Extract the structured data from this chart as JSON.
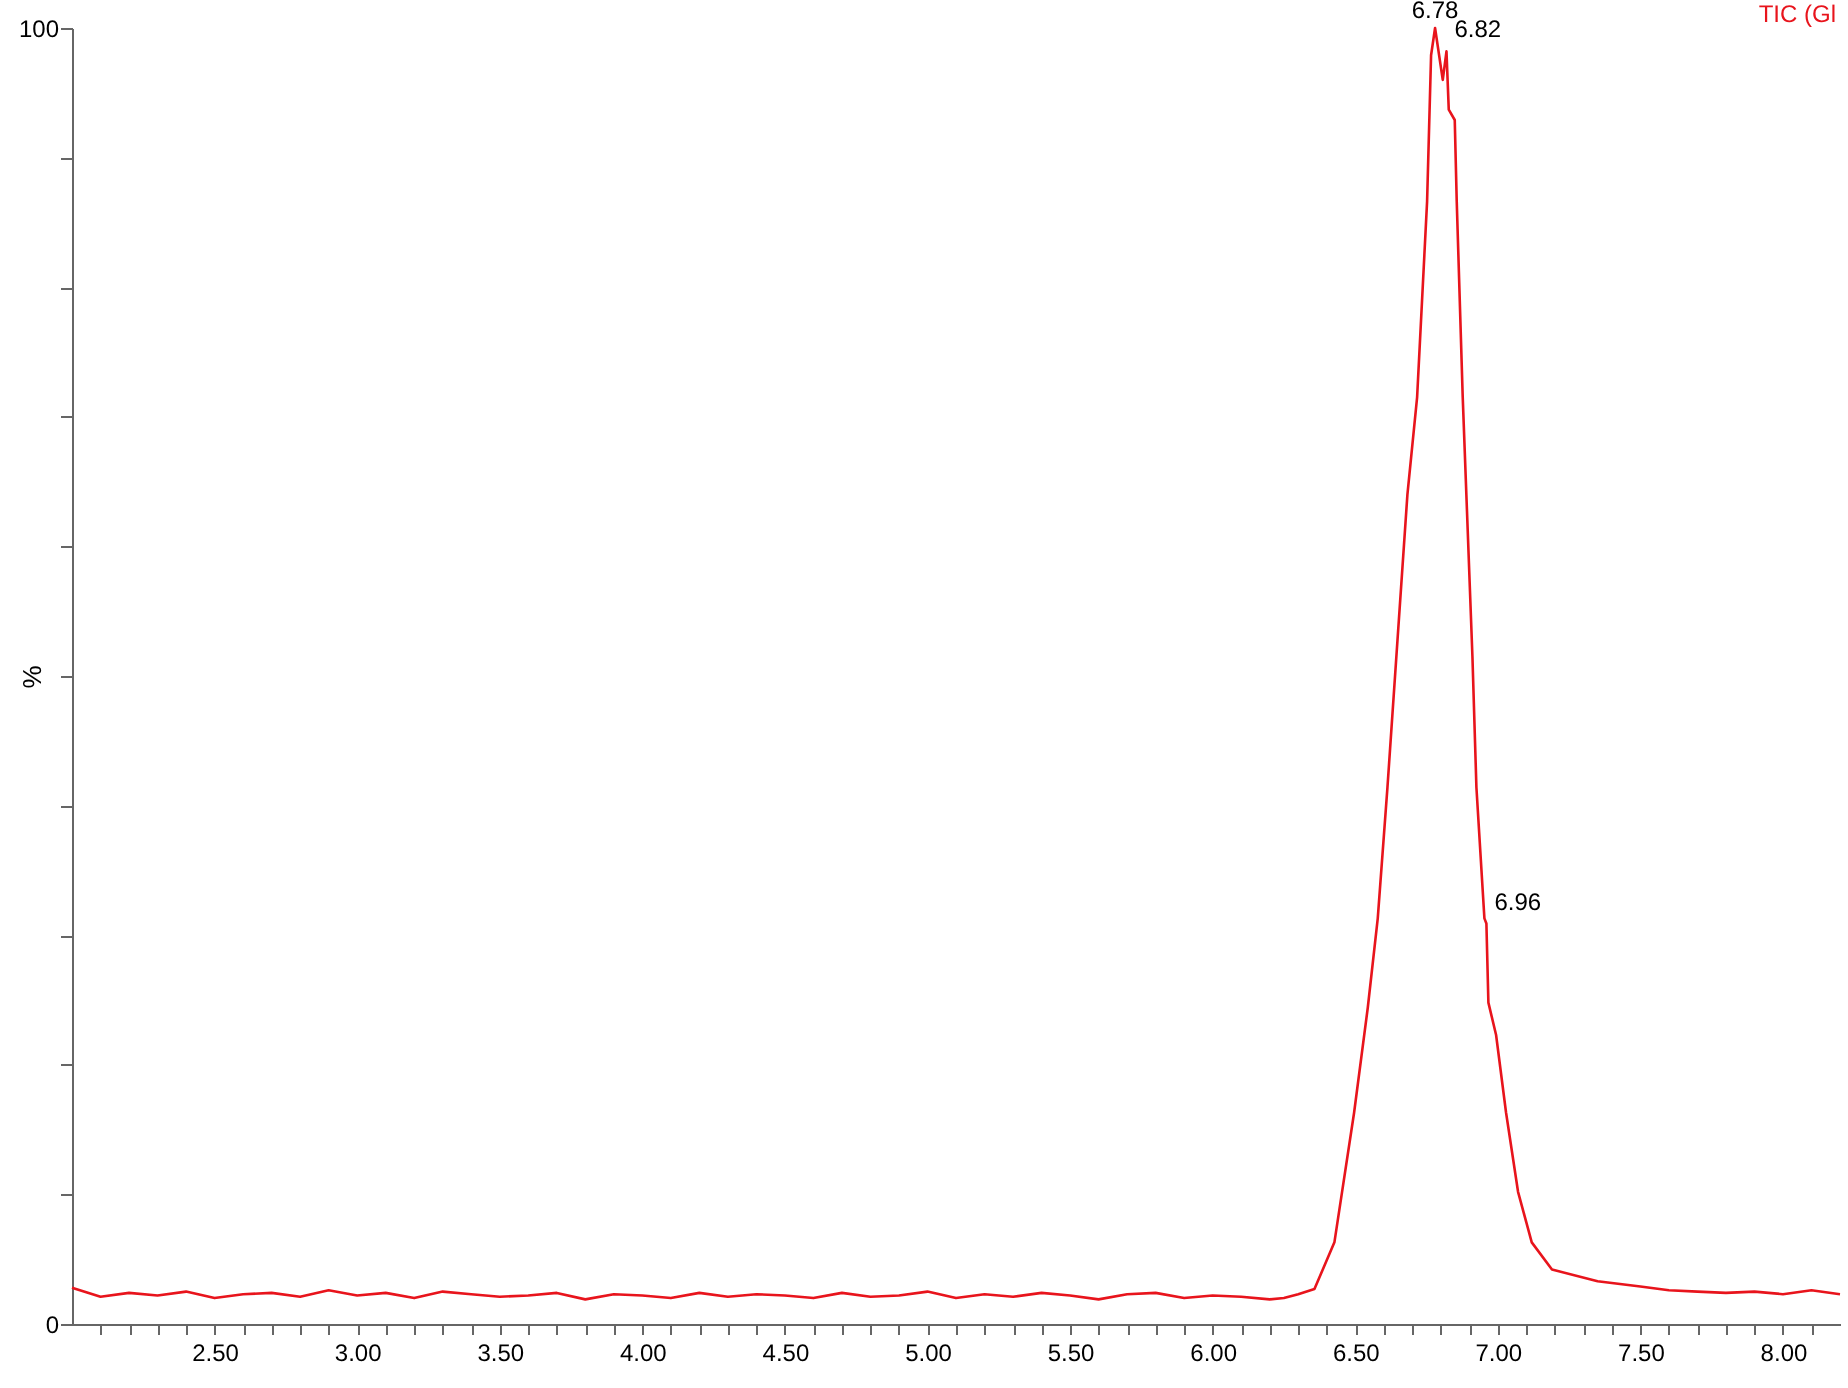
{
  "chart_data": {
    "type": "line",
    "ylabel": "%",
    "xlim": [
      2.0,
      8.2
    ],
    "ylim": [
      0,
      100
    ],
    "xticks": [
      {
        "value": 2.1,
        "label": null
      },
      {
        "value": 2.2,
        "label": null
      },
      {
        "value": 2.3,
        "label": null
      },
      {
        "value": 2.4,
        "label": null
      },
      {
        "value": 2.5,
        "label": "2.50"
      },
      {
        "value": 2.6,
        "label": null
      },
      {
        "value": 2.7,
        "label": null
      },
      {
        "value": 2.8,
        "label": null
      },
      {
        "value": 2.9,
        "label": null
      },
      {
        "value": 3.0,
        "label": "3.00"
      },
      {
        "value": 3.1,
        "label": null
      },
      {
        "value": 3.2,
        "label": null
      },
      {
        "value": 3.3,
        "label": null
      },
      {
        "value": 3.4,
        "label": null
      },
      {
        "value": 3.5,
        "label": "3.50"
      },
      {
        "value": 3.6,
        "label": null
      },
      {
        "value": 3.7,
        "label": null
      },
      {
        "value": 3.8,
        "label": null
      },
      {
        "value": 3.9,
        "label": null
      },
      {
        "value": 4.0,
        "label": "4.00"
      },
      {
        "value": 4.1,
        "label": null
      },
      {
        "value": 4.2,
        "label": null
      },
      {
        "value": 4.3,
        "label": null
      },
      {
        "value": 4.4,
        "label": null
      },
      {
        "value": 4.5,
        "label": "4.50"
      },
      {
        "value": 4.6,
        "label": null
      },
      {
        "value": 4.7,
        "label": null
      },
      {
        "value": 4.8,
        "label": null
      },
      {
        "value": 4.9,
        "label": null
      },
      {
        "value": 5.0,
        "label": "5.00"
      },
      {
        "value": 5.1,
        "label": null
      },
      {
        "value": 5.2,
        "label": null
      },
      {
        "value": 5.3,
        "label": null
      },
      {
        "value": 5.4,
        "label": null
      },
      {
        "value": 5.5,
        "label": "5.50"
      },
      {
        "value": 5.6,
        "label": null
      },
      {
        "value": 5.7,
        "label": null
      },
      {
        "value": 5.8,
        "label": null
      },
      {
        "value": 5.9,
        "label": null
      },
      {
        "value": 6.0,
        "label": "6.00"
      },
      {
        "value": 6.1,
        "label": null
      },
      {
        "value": 6.2,
        "label": null
      },
      {
        "value": 6.3,
        "label": null
      },
      {
        "value": 6.4,
        "label": null
      },
      {
        "value": 6.5,
        "label": "6.50"
      },
      {
        "value": 6.6,
        "label": null
      },
      {
        "value": 6.7,
        "label": null
      },
      {
        "value": 6.8,
        "label": null
      },
      {
        "value": 6.9,
        "label": null
      },
      {
        "value": 7.0,
        "label": "7.00"
      },
      {
        "value": 7.1,
        "label": null
      },
      {
        "value": 7.2,
        "label": null
      },
      {
        "value": 7.3,
        "label": null
      },
      {
        "value": 7.4,
        "label": null
      },
      {
        "value": 7.5,
        "label": "7.50"
      },
      {
        "value": 7.6,
        "label": null
      },
      {
        "value": 7.7,
        "label": null
      },
      {
        "value": 7.8,
        "label": null
      },
      {
        "value": 7.9,
        "label": null
      },
      {
        "value": 8.0,
        "label": "8.00"
      },
      {
        "value": 8.1,
        "label": null
      }
    ],
    "yticks": [
      0,
      {
        "value": 10,
        "label": null
      },
      {
        "value": 20,
        "label": null
      },
      {
        "value": 30,
        "label": null
      },
      {
        "value": 40,
        "label": null
      },
      {
        "value": 50,
        "label": null
      },
      {
        "value": 60,
        "label": null
      },
      {
        "value": 70,
        "label": null
      },
      {
        "value": 80,
        "label": null
      },
      {
        "value": 90,
        "label": null
      },
      100
    ],
    "annotations": [
      {
        "text": "6.78",
        "x": 6.78,
        "y": 100
      },
      {
        "text": "6.82",
        "x": 6.82,
        "y": 98.2
      },
      {
        "text": "6.96",
        "x": 6.96,
        "y": 30.9
      }
    ],
    "series": [
      {
        "name": "TIC (Gl",
        "color": "#e8141c",
        "x": [
          2.0,
          2.1,
          2.2,
          2.3,
          2.4,
          2.5,
          2.6,
          2.7,
          2.8,
          2.9,
          3.0,
          3.1,
          3.2,
          3.3,
          3.4,
          3.5,
          3.6,
          3.7,
          3.8,
          3.9,
          4.0,
          4.1,
          4.2,
          4.3,
          4.4,
          4.5,
          4.6,
          4.7,
          4.8,
          4.9,
          5.0,
          5.1,
          5.2,
          5.3,
          5.4,
          5.5,
          5.6,
          5.7,
          5.8,
          5.9,
          6.0,
          6.1,
          6.2,
          6.25,
          6.3,
          6.357,
          6.427,
          6.496,
          6.544,
          6.579,
          6.613,
          6.683,
          6.717,
          6.752,
          6.766,
          6.78,
          6.807,
          6.82,
          6.828,
          6.849,
          6.856,
          6.877,
          6.911,
          6.925,
          6.953,
          6.96,
          6.967,
          6.994,
          7.029,
          7.071,
          7.119,
          7.19,
          7.35,
          7.5,
          7.6,
          7.7,
          7.8,
          7.9,
          8.0,
          8.1,
          8.2
        ],
        "values": [
          2.8,
          2.1,
          2.4,
          2.2,
          2.5,
          2.0,
          2.3,
          2.4,
          2.1,
          2.6,
          2.2,
          2.4,
          2.0,
          2.5,
          2.3,
          2.1,
          2.2,
          2.4,
          1.9,
          2.3,
          2.2,
          2.0,
          2.4,
          2.1,
          2.3,
          2.2,
          2.0,
          2.4,
          2.1,
          2.2,
          2.5,
          2.0,
          2.3,
          2.1,
          2.4,
          2.2,
          1.9,
          2.3,
          2.4,
          2.0,
          2.2,
          2.1,
          1.9,
          2.0,
          2.3,
          2.7,
          6.3,
          16.3,
          24.4,
          31.3,
          41.4,
          64,
          71.5,
          86.6,
          97.9,
          100,
          96,
          98.2,
          93.7,
          92.9,
          86.6,
          71.5,
          51.5,
          41.4,
          31.3,
          30.9,
          24.8,
          22.3,
          16.3,
          10.2,
          6.3,
          4.2,
          3.3,
          2.9,
          2.6,
          2.5,
          2.4,
          2.5,
          2.3,
          2.6,
          2.3
        ]
      }
    ]
  }
}
